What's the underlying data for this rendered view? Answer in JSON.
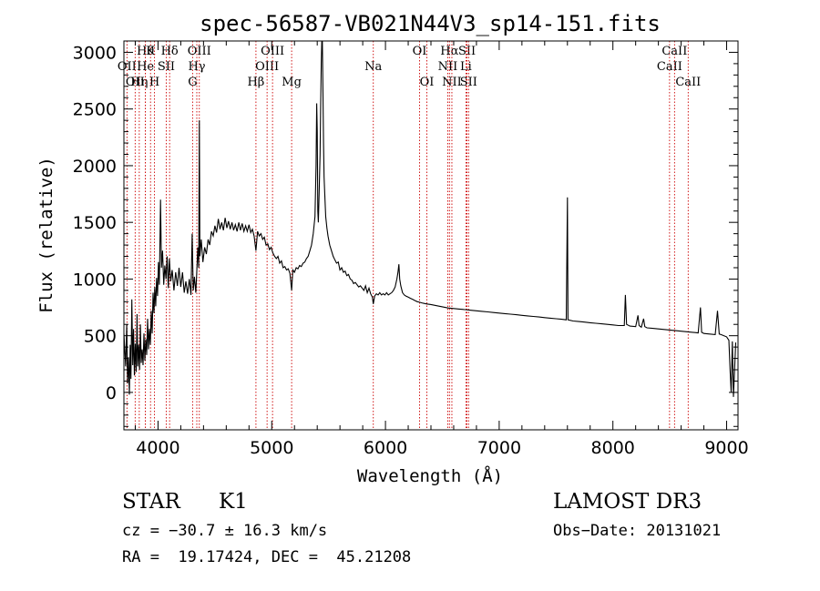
{
  "chart_data": {
    "type": "line",
    "title": "spec-56587-VB021N44V3_sp14-151.fits",
    "xlabel": "Wavelength (Å)",
    "ylabel": "Flux (relative)",
    "xlim": [
      3700,
      9100
    ],
    "ylim": [
      -330,
      3100
    ],
    "xticks": [
      4000,
      5000,
      6000,
      7000,
      8000,
      9000
    ],
    "yticks": [
      0,
      500,
      1000,
      1500,
      2000,
      2500,
      3000
    ],
    "grid": false,
    "line_color": "#000000",
    "marker_color": "#cc0000",
    "lines": [
      {
        "x": 3727,
        "label": "OII",
        "row": 1
      },
      {
        "x": 3799,
        "label": "OII",
        "row": 2
      },
      {
        "x": 3835,
        "label": "Hη",
        "row": 2
      },
      {
        "x": 3889,
        "label": "Hθ",
        "row": 0
      },
      {
        "x": 3889,
        "label": "He",
        "row": 1
      },
      {
        "x": 3934,
        "label": "K",
        "row": 0
      },
      {
        "x": 3969,
        "label": "H",
        "row": 2
      },
      {
        "x": 4072,
        "label": "SII",
        "row": 1
      },
      {
        "x": 4102,
        "label": "Hδ",
        "row": 0
      },
      {
        "x": 4304,
        "label": "G",
        "row": 2
      },
      {
        "x": 4341,
        "label": "Hγ",
        "row": 1
      },
      {
        "x": 4363,
        "label": "OIII",
        "row": 0
      },
      {
        "x": 4861,
        "label": "Hβ",
        "row": 2
      },
      {
        "x": 4959,
        "label": "OIII",
        "row": 1
      },
      {
        "x": 5007,
        "label": "OIII",
        "row": 0
      },
      {
        "x": 5175,
        "label": "Mg",
        "row": 2
      },
      {
        "x": 5893,
        "label": "Na",
        "row": 1
      },
      {
        "x": 6300,
        "label": "OI",
        "row": 0
      },
      {
        "x": 6364,
        "label": "OI",
        "row": 2
      },
      {
        "x": 6548,
        "label": "NII",
        "row": 1
      },
      {
        "x": 6563,
        "label": "Hα",
        "row": 0
      },
      {
        "x": 6584,
        "label": "NII",
        "row": 2
      },
      {
        "x": 6708,
        "label": "Li",
        "row": 1
      },
      {
        "x": 6717,
        "label": "SII",
        "row": 0
      },
      {
        "x": 6731,
        "label": "SII",
        "row": 2
      },
      {
        "x": 8498,
        "label": "CaII",
        "row": 1
      },
      {
        "x": 8542,
        "label": "CaII",
        "row": 0
      },
      {
        "x": 8662,
        "label": "CaII",
        "row": 2
      }
    ],
    "spectrum": [
      [
        3700,
        520
      ],
      [
        3715,
        230
      ],
      [
        3725,
        600
      ],
      [
        3732,
        80
      ],
      [
        3740,
        310
      ],
      [
        3748,
        -20
      ],
      [
        3755,
        420
      ],
      [
        3762,
        120
      ],
      [
        3770,
        820
      ],
      [
        3778,
        240
      ],
      [
        3785,
        560
      ],
      [
        3792,
        150
      ],
      [
        3800,
        430
      ],
      [
        3808,
        180
      ],
      [
        3815,
        690
      ],
      [
        3822,
        230
      ],
      [
        3830,
        420
      ],
      [
        3838,
        200
      ],
      [
        3845,
        600
      ],
      [
        3852,
        260
      ],
      [
        3860,
        380
      ],
      [
        3868,
        240
      ],
      [
        3876,
        520
      ],
      [
        3884,
        280
      ],
      [
        3892,
        470
      ],
      [
        3900,
        330
      ],
      [
        3908,
        650
      ],
      [
        3916,
        380
      ],
      [
        3924,
        560
      ],
      [
        3932,
        420
      ],
      [
        3940,
        720
      ],
      [
        3948,
        520
      ],
      [
        3956,
        880
      ],
      [
        3964,
        700
      ],
      [
        3972,
        930
      ],
      [
        3980,
        760
      ],
      [
        3988,
        1010
      ],
      [
        3996,
        850
      ],
      [
        4004,
        1150
      ],
      [
        4012,
        950
      ],
      [
        4022,
        1700
      ],
      [
        4030,
        1100
      ],
      [
        4040,
        1250
      ],
      [
        4050,
        950
      ],
      [
        4060,
        1120
      ],
      [
        4070,
        1000
      ],
      [
        4080,
        1200
      ],
      [
        4090,
        920
      ],
      [
        4100,
        1180
      ],
      [
        4112,
        980
      ],
      [
        4125,
        1080
      ],
      [
        4140,
        900
      ],
      [
        4155,
        1060
      ],
      [
        4170,
        940
      ],
      [
        4185,
        1100
      ],
      [
        4200,
        930
      ],
      [
        4215,
        1060
      ],
      [
        4230,
        880
      ],
      [
        4245,
        980
      ],
      [
        4260,
        870
      ],
      [
        4275,
        1000
      ],
      [
        4290,
        860
      ],
      [
        4300,
        1400
      ],
      [
        4310,
        900
      ],
      [
        4320,
        1020
      ],
      [
        4332,
        880
      ],
      [
        4340,
        1050
      ],
      [
        4350,
        1280
      ],
      [
        4358,
        1100
      ],
      [
        4363,
        2400
      ],
      [
        4368,
        1200
      ],
      [
        4380,
        1350
      ],
      [
        4395,
        1150
      ],
      [
        4410,
        1280
      ],
      [
        4425,
        1220
      ],
      [
        4440,
        1350
      ],
      [
        4455,
        1300
      ],
      [
        4470,
        1420
      ],
      [
        4485,
        1380
      ],
      [
        4500,
        1470
      ],
      [
        4515,
        1410
      ],
      [
        4530,
        1530
      ],
      [
        4545,
        1440
      ],
      [
        4560,
        1500
      ],
      [
        4575,
        1430
      ],
      [
        4590,
        1540
      ],
      [
        4605,
        1450
      ],
      [
        4620,
        1510
      ],
      [
        4635,
        1440
      ],
      [
        4650,
        1500
      ],
      [
        4665,
        1430
      ],
      [
        4680,
        1480
      ],
      [
        4695,
        1420
      ],
      [
        4710,
        1500
      ],
      [
        4725,
        1430
      ],
      [
        4740,
        1490
      ],
      [
        4755,
        1420
      ],
      [
        4770,
        1470
      ],
      [
        4785,
        1420
      ],
      [
        4800,
        1480
      ],
      [
        4815,
        1410
      ],
      [
        4830,
        1440
      ],
      [
        4845,
        1380
      ],
      [
        4861,
        1250
      ],
      [
        4875,
        1420
      ],
      [
        4890,
        1380
      ],
      [
        4905,
        1400
      ],
      [
        4920,
        1350
      ],
      [
        4935,
        1370
      ],
      [
        4950,
        1300
      ],
      [
        4965,
        1310
      ],
      [
        4980,
        1260
      ],
      [
        4995,
        1280
      ],
      [
        5010,
        1230
      ],
      [
        5025,
        1200
      ],
      [
        5040,
        1180
      ],
      [
        5055,
        1200
      ],
      [
        5070,
        1140
      ],
      [
        5085,
        1160
      ],
      [
        5100,
        1100
      ],
      [
        5115,
        1110
      ],
      [
        5130,
        1080
      ],
      [
        5145,
        1090
      ],
      [
        5160,
        1050
      ],
      [
        5175,
        900
      ],
      [
        5185,
        1080
      ],
      [
        5200,
        1060
      ],
      [
        5215,
        1100
      ],
      [
        5230,
        1090
      ],
      [
        5245,
        1120
      ],
      [
        5260,
        1110
      ],
      [
        5275,
        1140
      ],
      [
        5290,
        1150
      ],
      [
        5305,
        1180
      ],
      [
        5320,
        1200
      ],
      [
        5335,
        1250
      ],
      [
        5350,
        1300
      ],
      [
        5365,
        1400
      ],
      [
        5380,
        1550
      ],
      [
        5390,
        2000
      ],
      [
        5395,
        2550
      ],
      [
        5400,
        2300
      ],
      [
        5405,
        1600
      ],
      [
        5410,
        1500
      ],
      [
        5418,
        1800
      ],
      [
        5425,
        2100
      ],
      [
        5430,
        2500
      ],
      [
        5435,
        2900
      ],
      [
        5440,
        3100
      ],
      [
        5445,
        3100
      ],
      [
        5450,
        2700
      ],
      [
        5455,
        2200
      ],
      [
        5460,
        1900
      ],
      [
        5468,
        1700
      ],
      [
        5475,
        1550
      ],
      [
        5485,
        1450
      ],
      [
        5495,
        1380
      ],
      [
        5510,
        1300
      ],
      [
        5525,
        1250
      ],
      [
        5540,
        1200
      ],
      [
        5555,
        1170
      ],
      [
        5570,
        1140
      ],
      [
        5585,
        1150
      ],
      [
        5600,
        1080
      ],
      [
        5615,
        1100
      ],
      [
        5630,
        1060
      ],
      [
        5645,
        1070
      ],
      [
        5660,
        1030
      ],
      [
        5675,
        1040
      ],
      [
        5690,
        1000
      ],
      [
        5705,
        990
      ],
      [
        5720,
        960
      ],
      [
        5735,
        970
      ],
      [
        5750,
        950
      ],
      [
        5765,
        930
      ],
      [
        5780,
        940
      ],
      [
        5795,
        920
      ],
      [
        5810,
        900
      ],
      [
        5825,
        940
      ],
      [
        5840,
        880
      ],
      [
        5855,
        920
      ],
      [
        5870,
        870
      ],
      [
        5885,
        840
      ],
      [
        5893,
        780
      ],
      [
        5905,
        850
      ],
      [
        5920,
        870
      ],
      [
        5935,
        860
      ],
      [
        5950,
        880
      ],
      [
        5965,
        860
      ],
      [
        5980,
        870
      ],
      [
        5995,
        860
      ],
      [
        6010,
        880
      ],
      [
        6025,
        860
      ],
      [
        6040,
        870
      ],
      [
        6055,
        880
      ],
      [
        6070,
        900
      ],
      [
        6085,
        930
      ],
      [
        6100,
        1000
      ],
      [
        6110,
        1060
      ],
      [
        6118,
        1130
      ],
      [
        6125,
        1000
      ],
      [
        6135,
        940
      ],
      [
        6150,
        880
      ],
      [
        6165,
        860
      ],
      [
        6180,
        850
      ],
      [
        6200,
        840
      ],
      [
        6220,
        830
      ],
      [
        6240,
        820
      ],
      [
        6260,
        810
      ],
      [
        6280,
        800
      ],
      [
        6300,
        795
      ],
      [
        6320,
        790
      ],
      [
        6340,
        785
      ],
      [
        6364,
        780
      ],
      [
        6400,
        775
      ],
      [
        6450,
        765
      ],
      [
        6500,
        755
      ],
      [
        6550,
        745
      ],
      [
        6600,
        740
      ],
      [
        6650,
        735
      ],
      [
        6700,
        730
      ],
      [
        6750,
        725
      ],
      [
        6800,
        720
      ],
      [
        6850,
        715
      ],
      [
        6900,
        710
      ],
      [
        6950,
        705
      ],
      [
        7000,
        700
      ],
      [
        7050,
        695
      ],
      [
        7100,
        690
      ],
      [
        7150,
        685
      ],
      [
        7200,
        680
      ],
      [
        7250,
        675
      ],
      [
        7300,
        670
      ],
      [
        7350,
        665
      ],
      [
        7400,
        660
      ],
      [
        7450,
        655
      ],
      [
        7500,
        650
      ],
      [
        7550,
        645
      ],
      [
        7590,
        640
      ],
      [
        7600,
        1720
      ],
      [
        7605,
        640
      ],
      [
        7650,
        630
      ],
      [
        7700,
        625
      ],
      [
        7750,
        620
      ],
      [
        7800,
        615
      ],
      [
        7850,
        610
      ],
      [
        7900,
        605
      ],
      [
        7950,
        600
      ],
      [
        8000,
        595
      ],
      [
        8050,
        590
      ],
      [
        8100,
        590
      ],
      [
        8110,
        860
      ],
      [
        8120,
        600
      ],
      [
        8150,
        585
      ],
      [
        8200,
        580
      ],
      [
        8220,
        680
      ],
      [
        8230,
        590
      ],
      [
        8250,
        575
      ],
      [
        8270,
        650
      ],
      [
        8280,
        580
      ],
      [
        8300,
        570
      ],
      [
        8350,
        565
      ],
      [
        8400,
        560
      ],
      [
        8450,
        555
      ],
      [
        8500,
        550
      ],
      [
        8550,
        545
      ],
      [
        8600,
        540
      ],
      [
        8650,
        535
      ],
      [
        8700,
        530
      ],
      [
        8750,
        525
      ],
      [
        8770,
        750
      ],
      [
        8780,
        530
      ],
      [
        8800,
        520
      ],
      [
        8850,
        515
      ],
      [
        8900,
        510
      ],
      [
        8920,
        720
      ],
      [
        8935,
        515
      ],
      [
        8950,
        510
      ],
      [
        9000,
        490
      ],
      [
        9020,
        460
      ],
      [
        9030,
        200
      ],
      [
        9040,
        0
      ],
      [
        9050,
        450
      ],
      [
        9060,
        -40
      ],
      [
        9080,
        440
      ]
    ]
  },
  "footer": {
    "class_label": "STAR",
    "subclass_label": "K1",
    "cz": "cz = −30.7 ± 16.3 km/s",
    "coords": "RA =  19.17424, DEC =  45.21208",
    "survey": "LAMOST DR3",
    "obs_date": "Obs−Date: 20131021"
  }
}
